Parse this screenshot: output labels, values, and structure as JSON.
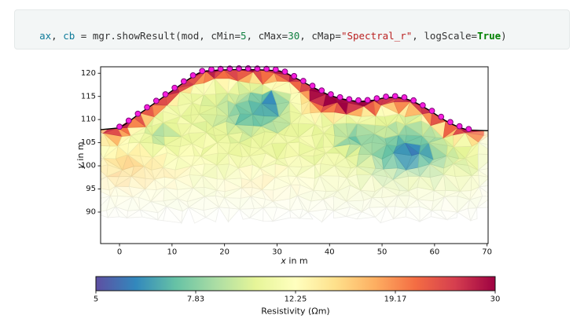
{
  "code_cell": {
    "background": "#f3f6f6",
    "border_color": "#e4e9e9",
    "tokens": [
      {
        "text": "ax",
        "color": "#0f7b9a"
      },
      {
        "text": ", ",
        "color": "#333333"
      },
      {
        "text": "cb",
        "color": "#0f7b9a"
      },
      {
        "text": " = ",
        "color": "#333333"
      },
      {
        "text": "mgr.showResult(mod, cMin=",
        "color": "#333333"
      },
      {
        "text": "5",
        "color": "#108040"
      },
      {
        "text": ", cMax=",
        "color": "#333333"
      },
      {
        "text": "30",
        "color": "#108040"
      },
      {
        "text": ", cMap=",
        "color": "#333333"
      },
      {
        "text": "\"Spectral_r\"",
        "color": "#ba2121"
      },
      {
        "text": ", logScale=",
        "color": "#333333"
      },
      {
        "text": "True",
        "color": "#008000",
        "bold": true
      },
      {
        "text": ")",
        "color": "#333333"
      }
    ]
  },
  "chart_data": {
    "type": "heatmap",
    "style": "triangulated-mesh-pseudocolor (ERT inversion result)",
    "title": "",
    "xlabel": "x in m",
    "ylabel": "y in m",
    "xlim": [
      -3.6,
      70.2
    ],
    "ylim": [
      83.2,
      121.4
    ],
    "xticks": [
      0,
      10,
      20,
      30,
      40,
      50,
      60,
      70
    ],
    "yticks": [
      90,
      95,
      100,
      105,
      110,
      115,
      120
    ],
    "grid": false,
    "colorbar": {
      "label": "Resistivity (Ωm)",
      "scale": "log",
      "cmin": 5,
      "cmax": 30,
      "cmap": "Spectral_r",
      "tick_values": [
        5,
        7.83,
        12.25,
        19.17,
        30
      ],
      "tick_labels": [
        "5",
        "7.83",
        "12.25",
        "19.17",
        "30"
      ]
    },
    "cmap_anchors": [
      "#5e4fa2",
      "#3288bd",
      "#66c2a5",
      "#abdda4",
      "#e6f598",
      "#ffffbf",
      "#fee08b",
      "#fdae61",
      "#f46d43",
      "#d53e4f",
      "#9e0142"
    ],
    "topography": [
      [
        -3.6,
        107.8
      ],
      [
        0,
        108.2
      ],
      [
        1.5,
        109.3
      ],
      [
        3,
        110.6
      ],
      [
        5,
        112.2
      ],
      [
        7,
        113.8
      ],
      [
        9,
        115.4
      ],
      [
        11,
        117.0
      ],
      [
        13,
        118.6
      ],
      [
        15,
        120.0
      ],
      [
        16.5,
        120.5
      ],
      [
        19,
        120.7
      ],
      [
        22,
        120.8
      ],
      [
        25,
        120.8
      ],
      [
        28,
        120.7
      ],
      [
        30.5,
        120.5
      ],
      [
        32,
        119.9
      ],
      [
        33.5,
        119.0
      ],
      [
        35,
        118.1
      ],
      [
        36.5,
        117.2
      ],
      [
        38,
        116.3
      ],
      [
        39.5,
        115.5
      ],
      [
        41,
        114.9
      ],
      [
        42.5,
        114.4
      ],
      [
        44,
        114.1
      ],
      [
        45.5,
        113.9
      ],
      [
        47,
        113.9
      ],
      [
        48.5,
        114.2
      ],
      [
        50,
        114.6
      ],
      [
        51.5,
        114.8
      ],
      [
        53,
        114.8
      ],
      [
        54.5,
        114.5
      ],
      [
        56,
        113.9
      ],
      [
        57.5,
        113.0
      ],
      [
        59,
        112.0
      ],
      [
        60.5,
        110.9
      ],
      [
        62,
        109.8
      ],
      [
        63.5,
        108.9
      ],
      [
        65,
        108.2
      ],
      [
        66.5,
        107.7
      ],
      [
        70.2,
        107.6
      ]
    ],
    "electrodes": {
      "x_start": 0,
      "x_end": 66.5,
      "spacing": 1.75,
      "count": 39,
      "marker_color": "#f81ede",
      "marker_edge_color": "#7c0a78",
      "marker_radius_px": 3.4
    },
    "field": {
      "base": 11,
      "surface_cap": {
        "amplitude": 17,
        "width": 1.9,
        "x_full_min": -1,
        "x_full_max": 66.8,
        "taper": 3,
        "taper_floor": 0.2
      },
      "blobs": [
        {
          "cx": 25.5,
          "cy": 111.5,
          "sx": 6.5,
          "sy": 4.3,
          "a": -4
        },
        {
          "cx": 29.0,
          "cy": 114.0,
          "sx": 2.6,
          "sy": 2.0,
          "a": -3
        },
        {
          "cx": 55.0,
          "cy": 103.0,
          "sx": 7.5,
          "sy": 5.5,
          "a": -5
        },
        {
          "cx": 7.5,
          "cy": 106.5,
          "sx": 3.5,
          "sy": 2.6,
          "a": -2.5
        },
        {
          "cx": 44.5,
          "cy": 106.0,
          "sx": 3.4,
          "sy": 2.6,
          "a": -3
        },
        {
          "cx": 40.5,
          "cy": 114.0,
          "sx": 4.8,
          "sy": 2.4,
          "a": 14
        },
        {
          "cx": 2.0,
          "cy": 99.0,
          "sx": 9.0,
          "sy": 5.5,
          "a": 4
        },
        {
          "cx": 28.0,
          "cy": 96.0,
          "sx": 8.0,
          "sy": 4.0,
          "a": 2
        }
      ]
    },
    "coverage": {
      "y_full": 102.8,
      "y_zero": 88.3,
      "gamma": 1.15,
      "surface_sigma": 3.5,
      "side_x_min": -2.5,
      "side_x_max": 67.5,
      "side_fade": 4
    },
    "mesh": {
      "dx": 2.3,
      "dy": 2.3,
      "jitter": 1.5,
      "value_jitter": 0.07
    },
    "axes_color": "#111111",
    "topo_line_color": "#000000"
  }
}
